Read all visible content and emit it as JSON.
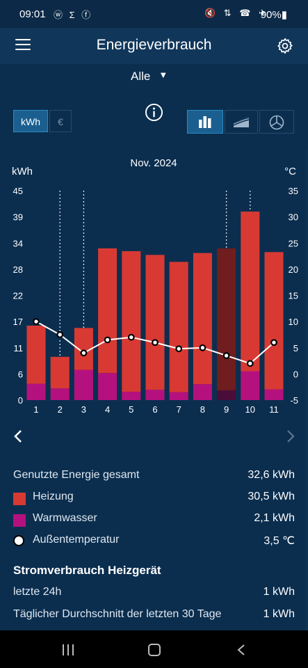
{
  "status_bar": {
    "time": "09:01",
    "left_icons": "ⓦ Σ ⓕ",
    "right_icons": "🔇 ⇅ ☎ ✈",
    "battery": "90%"
  },
  "header": {
    "title": "Energieverbrauch",
    "menu_icon": "hamburger-menu-icon",
    "settings_icon": "gear-icon"
  },
  "filter": {
    "selected": "Alle"
  },
  "unit_toggle": {
    "kwh_label": "kWh",
    "euro_label": "€",
    "selected": "kWh"
  },
  "view_toggle": {
    "options": [
      "bar-chart",
      "area-chart",
      "pie-chart"
    ],
    "selected": "bar-chart"
  },
  "chart_data": {
    "type": "bar",
    "title": "Nov. 2024",
    "ylabel_left": "kWh",
    "ylabel_right": "°C",
    "ylim_left": [
      0,
      45
    ],
    "ylim_right": [
      -5,
      35
    ],
    "yticks_left": [
      "45",
      "39",
      "34",
      "28",
      "22",
      "17",
      "11",
      "6",
      "0"
    ],
    "yticks_right": [
      "35",
      "30",
      "25",
      "20",
      "15",
      "10",
      "5",
      "0",
      "-5"
    ],
    "categories": [
      "1",
      "2",
      "3",
      "4",
      "5",
      "6",
      "7",
      "8",
      "9",
      "10",
      "11"
    ],
    "series": [
      {
        "name": "Heizung",
        "color": "#d83a33",
        "values": [
          12.5,
          6.8,
          9.0,
          26.8,
          30.2,
          29.0,
          28.0,
          28.2,
          30.5,
          34.3,
          29.5
        ]
      },
      {
        "name": "Warmwasser",
        "color": "#b5117e",
        "values": [
          3.5,
          2.5,
          6.5,
          5.8,
          1.8,
          2.2,
          1.7,
          3.4,
          2.1,
          6.2,
          2.3
        ]
      },
      {
        "name": "Außentemperatur",
        "color": "#ffffff",
        "values": [
          10.0,
          7.5,
          4.0,
          6.5,
          7.0,
          6.0,
          4.8,
          5.0,
          3.5,
          2.0,
          6.0
        ]
      }
    ],
    "dotted_markers": [
      "2",
      "3",
      "9",
      "10"
    ],
    "highlighted_category": "9",
    "highlight_color": "#6f1d1e",
    "grid": false
  },
  "summary": {
    "total_label": "Genutzte Energie gesamt",
    "total_value": "32,6 kWh",
    "rows": [
      {
        "label": "Heizung",
        "value": "30,5 kWh",
        "color": "#d83a33"
      },
      {
        "label": "Warmwasser",
        "value": "2,1 kWh",
        "color": "#b5117e"
      },
      {
        "label": "Außentemperatur",
        "value": "3,5 ℃",
        "color": "#ffffff"
      }
    ]
  },
  "power": {
    "title": "Stromverbrauch Heizgerät",
    "rows": [
      {
        "label": "letzte 24h",
        "value": "1 kWh"
      },
      {
        "label": "Täglicher Durchschnitt der letzten 30 Tage",
        "value": "1 kWh"
      }
    ]
  }
}
